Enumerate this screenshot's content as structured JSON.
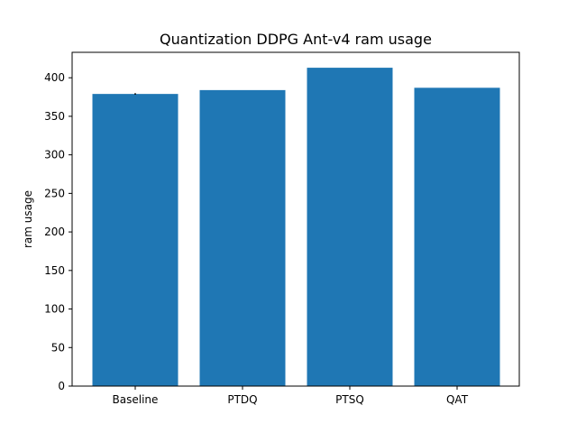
{
  "chart_data": {
    "type": "bar",
    "title": "Quantization DDPG Ant-v4 ram usage",
    "xlabel": "",
    "ylabel": "ram usage",
    "categories": [
      "Baseline",
      "PTDQ",
      "PTSQ",
      "QAT"
    ],
    "values": [
      379,
      384,
      413,
      387
    ],
    "error": [
      1,
      0,
      0,
      0
    ],
    "ylim": [
      0,
      433
    ],
    "yticks": [
      0,
      50,
      100,
      150,
      200,
      250,
      300,
      350,
      400
    ],
    "bar_color": "#1f77b4",
    "grid": false,
    "legend": "none"
  }
}
